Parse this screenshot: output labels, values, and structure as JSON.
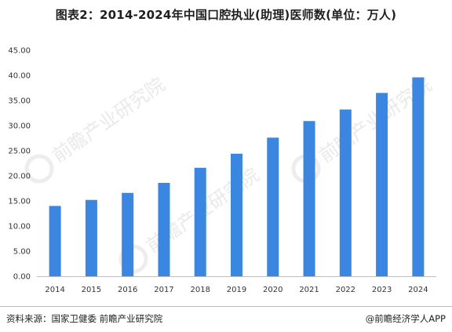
{
  "title": "图表2：2014-2024年中国口腔执业(助理)医师数(单位：万人)",
  "footer": {
    "source": "资料来源：国家卫健委 前瞻产业研究院",
    "brand": "@前瞻经济学人APP"
  },
  "watermark": {
    "text": "前瞻产业研究院",
    "icon": "qianzhan-logo-icon"
  },
  "colors": {
    "bar": "#3a86e0",
    "axis": "#bfbfbf",
    "text": "#333333"
  },
  "chart_data": {
    "type": "bar",
    "categories": [
      "2014",
      "2015",
      "2016",
      "2017",
      "2018",
      "2019",
      "2020",
      "2021",
      "2022",
      "2023",
      "2024"
    ],
    "values": [
      14.0,
      15.2,
      16.6,
      18.6,
      21.6,
      24.4,
      27.6,
      30.9,
      33.2,
      36.5,
      39.6
    ],
    "ylim": [
      0,
      45
    ],
    "yticks": [
      "0.00",
      "5.00",
      "10.00",
      "15.00",
      "20.00",
      "25.00",
      "30.00",
      "35.00",
      "40.00",
      "45.00"
    ],
    "ytick_values": [
      0,
      5,
      10,
      15,
      20,
      25,
      30,
      35,
      40,
      45
    ],
    "grid": false,
    "legend": "none",
    "title": "图表2：2014-2024年中国口腔执业(助理)医师数(单位：万人)",
    "xlabel": "",
    "ylabel": ""
  }
}
